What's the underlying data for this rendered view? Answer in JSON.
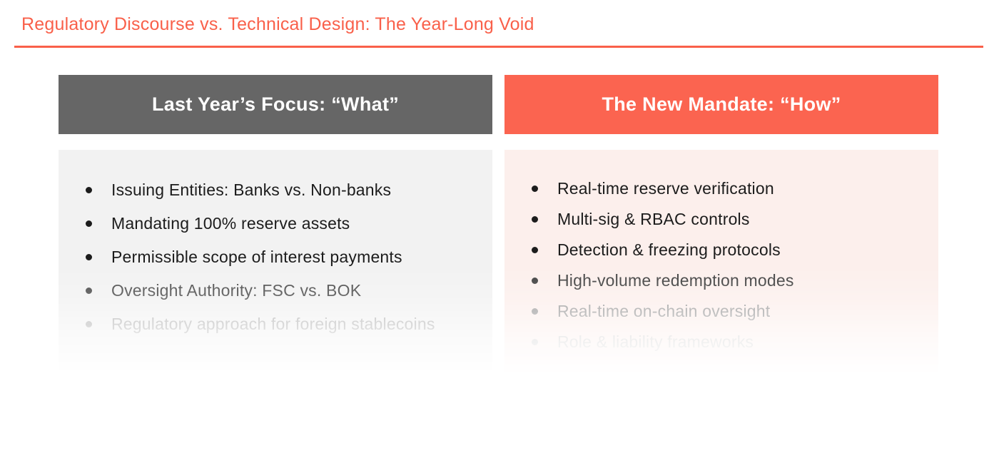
{
  "title": "Regulatory Discourse vs. Technical Design: The Year-Long Void",
  "accent_color": "#f9604a",
  "icons": {
    "bullet": "dot"
  },
  "columns": [
    {
      "header": "Last Year’s Focus: “What”",
      "header_bg": "#666666",
      "body_bg": "#f2f2f2",
      "items": [
        {
          "text": "Issuing Entities: Banks vs. Non-banks",
          "color": "#1c1c1c"
        },
        {
          "text": "Mandating 100% reserve assets",
          "color": "#1c1c1c"
        },
        {
          "text": "Permissible scope of interest payments",
          "color": "#1c1c1c"
        },
        {
          "text": "Oversight Authority: FSC vs. BOK",
          "color": "#4a4a4a"
        },
        {
          "text": "Regulatory approach for foreign stablecoins",
          "color": "#b3b3b3"
        }
      ]
    },
    {
      "header": "The New Mandate: “How”",
      "header_bg": "#fb6450",
      "body_bg": "#fcefec",
      "items": [
        {
          "text": "Real-time reserve verification",
          "color": "#1c1c1c"
        },
        {
          "text": "Multi-sig & RBAC controls",
          "color": "#1c1c1c"
        },
        {
          "text": "Detection & freezing protocols",
          "color": "#1c1c1c"
        },
        {
          "text": "High-volume redemption modes",
          "color": "#3f3f3f"
        },
        {
          "text": "Real-time on-chain oversight",
          "color": "#9c9c9c"
        },
        {
          "text": "Role & liability frameworks",
          "color": "#cfcfcf"
        }
      ]
    }
  ]
}
